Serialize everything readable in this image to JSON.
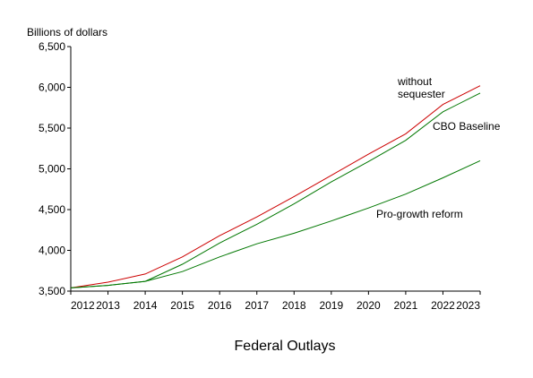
{
  "chart_data": {
    "type": "line",
    "title": "",
    "caption": "Federal Outlays",
    "xlabel": "",
    "ylabel": "Billions of dollars",
    "x": [
      2012,
      2013,
      2014,
      2015,
      2016,
      2017,
      2018,
      2019,
      2020,
      2021,
      2022,
      2023
    ],
    "xlim": [
      2012,
      2023
    ],
    "ylim": [
      3500,
      6500
    ],
    "yticks": [
      3500,
      4000,
      4500,
      5000,
      5500,
      6000,
      6500
    ],
    "ytick_labels": [
      "3,500",
      "4,000",
      "4,500",
      "5,000",
      "5,500",
      "6,000",
      "6,500"
    ],
    "grid": false,
    "legend": "none",
    "series": [
      {
        "name": "without\nsequester",
        "label_lines": [
          "without",
          "sequester"
        ],
        "color": "#cc0000",
        "values": [
          3540,
          3610,
          3710,
          3920,
          4180,
          4410,
          4660,
          4920,
          5180,
          5430,
          5790,
          6020
        ]
      },
      {
        "name": "CBO Baseline",
        "label_lines": [
          "CBO Baseline"
        ],
        "color": "#007700",
        "values": [
          3540,
          3570,
          3620,
          3830,
          4090,
          4320,
          4570,
          4840,
          5090,
          5350,
          5700,
          5930
        ]
      },
      {
        "name": "Pro-growth reform",
        "label_lines": [
          "Pro-growth reform"
        ],
        "color": "#007700",
        "values": [
          3540,
          3570,
          3620,
          3740,
          3920,
          4080,
          4210,
          4360,
          4520,
          4690,
          4890,
          5100
        ]
      }
    ]
  }
}
